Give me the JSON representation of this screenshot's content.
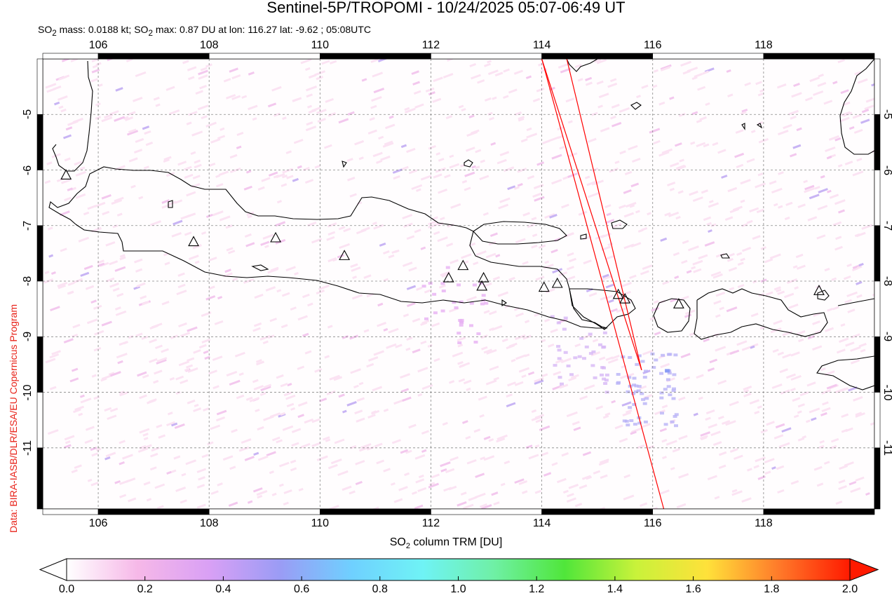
{
  "title": "Sentinel-5P/TROPOMI - 10/24/2025 05:07-06:49 UT",
  "subtitle": {
    "mass_prefix": "SO",
    "mass_sub": "2",
    "mass_text": " mass: 0.0188 kt; SO",
    "max_sub": "2",
    "max_text": " max: 0.87 DU at lon: 116.27 lat: -9.62 ; 05:08UTC"
  },
  "credit": "Data: BIRA-IASB/DLR/ESA/EU Copernicus Program",
  "map": {
    "lon_range": [
      105,
      120
    ],
    "lat_range": [
      -12.1,
      -4
    ],
    "lon_ticks": [
      "106",
      "108",
      "110",
      "112",
      "114",
      "116",
      "118"
    ],
    "lat_ticks": [
      "-5",
      "-6",
      "-7",
      "-8",
      "-9",
      "-10",
      "-11"
    ],
    "grid": true,
    "swath_edge_color": "#ff0000",
    "coast_color": "#000000",
    "volcanoes": [
      [
        105.42,
        -6.1
      ],
      [
        107.72,
        -7.3
      ],
      [
        109.2,
        -7.23
      ],
      [
        110.44,
        -7.55
      ],
      [
        112.32,
        -7.95
      ],
      [
        112.58,
        -7.73
      ],
      [
        112.95,
        -7.95
      ],
      [
        112.92,
        -8.1
      ],
      [
        114.04,
        -8.12
      ],
      [
        114.28,
        -8.05
      ],
      [
        115.38,
        -8.25
      ],
      [
        115.5,
        -8.33
      ],
      [
        116.47,
        -8.42
      ],
      [
        119.0,
        -8.18
      ]
    ],
    "so2_hotspot": {
      "lon": 116.27,
      "lat": -9.62,
      "value_du": 0.87
    }
  },
  "colorbar": {
    "label_prefix": "SO",
    "label_sub": "2",
    "label_suffix": " column TRM [DU]",
    "ticks": [
      "0.0",
      "0.2",
      "0.4",
      "0.6",
      "0.8",
      "1.0",
      "1.2",
      "1.4",
      "1.6",
      "1.8",
      "2.0"
    ],
    "range": [
      0,
      2.0
    ],
    "colors": [
      "#ffffff",
      "#f6b8e8",
      "#d9a0f5",
      "#9a9cf5",
      "#6fd0ff",
      "#6ff3f5",
      "#6ff0a6",
      "#50e63a",
      "#c9f23a",
      "#ffe13a",
      "#ff7a2a",
      "#ff1a00"
    ]
  }
}
